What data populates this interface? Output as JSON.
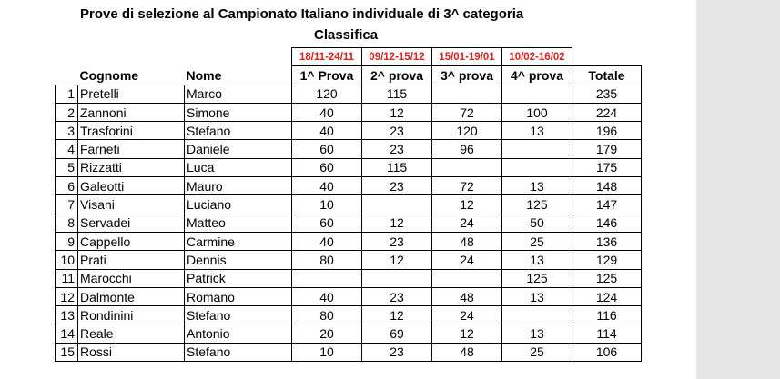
{
  "header": {
    "title": "Prove di selezione al Campionato Italiano individuale di 3^ categoria",
    "subtitle": "Classifica"
  },
  "periods": [
    "18/11-24/11",
    "09/12-15/12",
    "15/01-19/01",
    "10/02-16/02"
  ],
  "columns": {
    "cognome": "Cognome",
    "nome": "Nome",
    "p1": "1^ Prova",
    "p2": "2^ prova",
    "p3": "3^ prova",
    "p4": "4^ prova",
    "totale": "Totale"
  },
  "colors": {
    "period_text": "#e0201c",
    "side_panel": "#e6e6e6"
  },
  "rows": [
    {
      "rank": "1",
      "cognome": "Pretelli",
      "nome": "Marco",
      "p1": "120",
      "p2": "115",
      "p3": "",
      "p4": "",
      "tot": "235"
    },
    {
      "rank": "2",
      "cognome": "Zannoni",
      "nome": "Simone",
      "p1": "40",
      "p2": "12",
      "p3": "72",
      "p4": "100",
      "tot": "224"
    },
    {
      "rank": "3",
      "cognome": "Trasforini",
      "nome": "Stefano",
      "p1": "40",
      "p2": "23",
      "p3": "120",
      "p4": "13",
      "tot": "196"
    },
    {
      "rank": "4",
      "cognome": "Farneti",
      "nome": "Daniele",
      "p1": "60",
      "p2": "23",
      "p3": "96",
      "p4": "",
      "tot": "179"
    },
    {
      "rank": "5",
      "cognome": "Rizzatti",
      "nome": "Luca",
      "p1": "60",
      "p2": "115",
      "p3": "",
      "p4": "",
      "tot": "175"
    },
    {
      "rank": "6",
      "cognome": "Galeotti",
      "nome": "Mauro",
      "p1": "40",
      "p2": "23",
      "p3": "72",
      "p4": "13",
      "tot": "148"
    },
    {
      "rank": "7",
      "cognome": "Visani",
      "nome": "Luciano",
      "p1": "10",
      "p2": "",
      "p3": "12",
      "p4": "125",
      "tot": "147"
    },
    {
      "rank": "8",
      "cognome": "Servadei",
      "nome": "Matteo",
      "p1": "60",
      "p2": "12",
      "p3": "24",
      "p4": "50",
      "tot": "146"
    },
    {
      "rank": "9",
      "cognome": "Cappello",
      "nome": "Carmine",
      "p1": "40",
      "p2": "23",
      "p3": "48",
      "p4": "25",
      "tot": "136"
    },
    {
      "rank": "10",
      "cognome": "Prati",
      "nome": "Dennis",
      "p1": "80",
      "p2": "12",
      "p3": "24",
      "p4": "13",
      "tot": "129"
    },
    {
      "rank": "11",
      "cognome": "Marocchi",
      "nome": "Patrick",
      "p1": "",
      "p2": "",
      "p3": "",
      "p4": "125",
      "tot": "125"
    },
    {
      "rank": "12",
      "cognome": "Dalmonte",
      "nome": "Romano",
      "p1": "40",
      "p2": "23",
      "p3": "48",
      "p4": "13",
      "tot": "124"
    },
    {
      "rank": "13",
      "cognome": "Rondinini",
      "nome": "Stefano",
      "p1": "80",
      "p2": "12",
      "p3": "24",
      "p4": "",
      "tot": "116"
    },
    {
      "rank": "14",
      "cognome": "Reale",
      "nome": "Antonio",
      "p1": "20",
      "p2": "69",
      "p3": "12",
      "p4": "13",
      "tot": "114"
    },
    {
      "rank": "15",
      "cognome": "Rossi",
      "nome": "Stefano",
      "p1": "10",
      "p2": "23",
      "p3": "48",
      "p4": "25",
      "tot": "106"
    }
  ]
}
